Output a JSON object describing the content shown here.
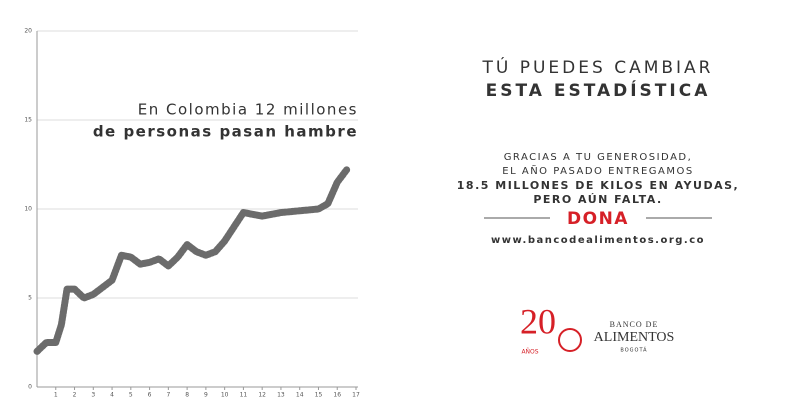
{
  "chart_data": {
    "type": "line",
    "annotation": [
      "En Colombia 12 millones",
      "de personas pasan hambre"
    ],
    "x": [
      0,
      0.5,
      1,
      1.3,
      1.6,
      2,
      2.5,
      3,
      3.5,
      4,
      4.5,
      5,
      5.5,
      6,
      6.5,
      7,
      7.5,
      8,
      8.5,
      9,
      9.5,
      10,
      10.5,
      11,
      11.5,
      12,
      12.5,
      13,
      14,
      15,
      15.5,
      16,
      16.5
    ],
    "values": [
      2.0,
      2.5,
      2.5,
      3.5,
      5.5,
      5.5,
      5.0,
      5.2,
      5.6,
      6.0,
      7.4,
      7.3,
      6.9,
      7.0,
      7.2,
      6.8,
      7.3,
      8.0,
      7.6,
      7.4,
      7.6,
      8.2,
      9.0,
      9.8,
      9.7,
      9.6,
      9.7,
      9.8,
      9.9,
      10.0,
      10.3,
      11.5,
      12.2
    ],
    "color": "#6b6b6b",
    "xlim": [
      0,
      17
    ],
    "xticks": [
      1,
      2,
      3,
      4,
      5,
      6,
      7,
      8,
      9,
      10,
      11,
      12,
      13,
      14,
      15,
      16,
      17
    ],
    "ylim": [
      0,
      20
    ],
    "yticks": [
      0,
      5,
      10,
      15,
      20
    ],
    "grid": true
  },
  "message": {
    "headline": [
      "TÚ PUEDES CAMBIAR",
      "ESTA ESTADÍSTICA"
    ],
    "body": [
      "GRACIAS A TU GENEROSIDAD,",
      "EL AÑO PASADO ENTREGAMOS",
      "18.5 MILLONES DE KILOS EN AYUDAS,",
      "PERO AÚN FALTA."
    ],
    "cta": "DONA",
    "url": "www.bancodealimentos.org.co"
  },
  "logo": {
    "number": "20",
    "years": "AÑOS",
    "line1": "BANCO DE",
    "line2": "ALIMENTOS",
    "line3": "BOGOTÁ"
  }
}
